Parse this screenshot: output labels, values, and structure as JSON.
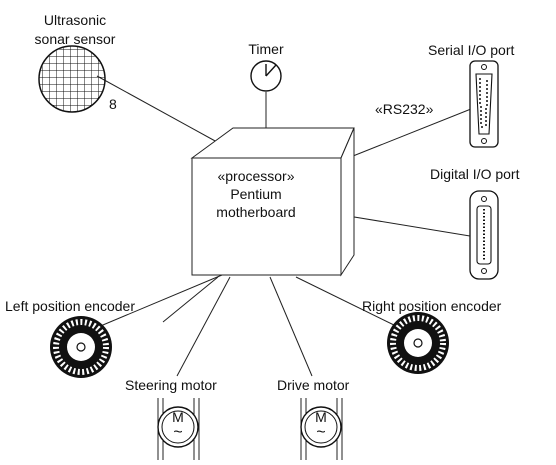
{
  "labels": {
    "sonar_line1": "Ultrasonic",
    "sonar_line2": "sonar sensor",
    "sonar_multiplicity": "8",
    "timer": "Timer",
    "serial_port": "Serial I/O port",
    "rs232": "«RS232»",
    "digital_port": "Digital I/O port",
    "processor_stereotype": "«processor»",
    "processor_line2": "Pentium",
    "processor_line3": "motherboard",
    "left_encoder": "Left position encoder",
    "right_encoder": "Right position encoder",
    "steering_motor": "Steering motor",
    "drive_motor": "Drive motor",
    "motor_symbol": "M",
    "ac_symbol": "~"
  }
}
